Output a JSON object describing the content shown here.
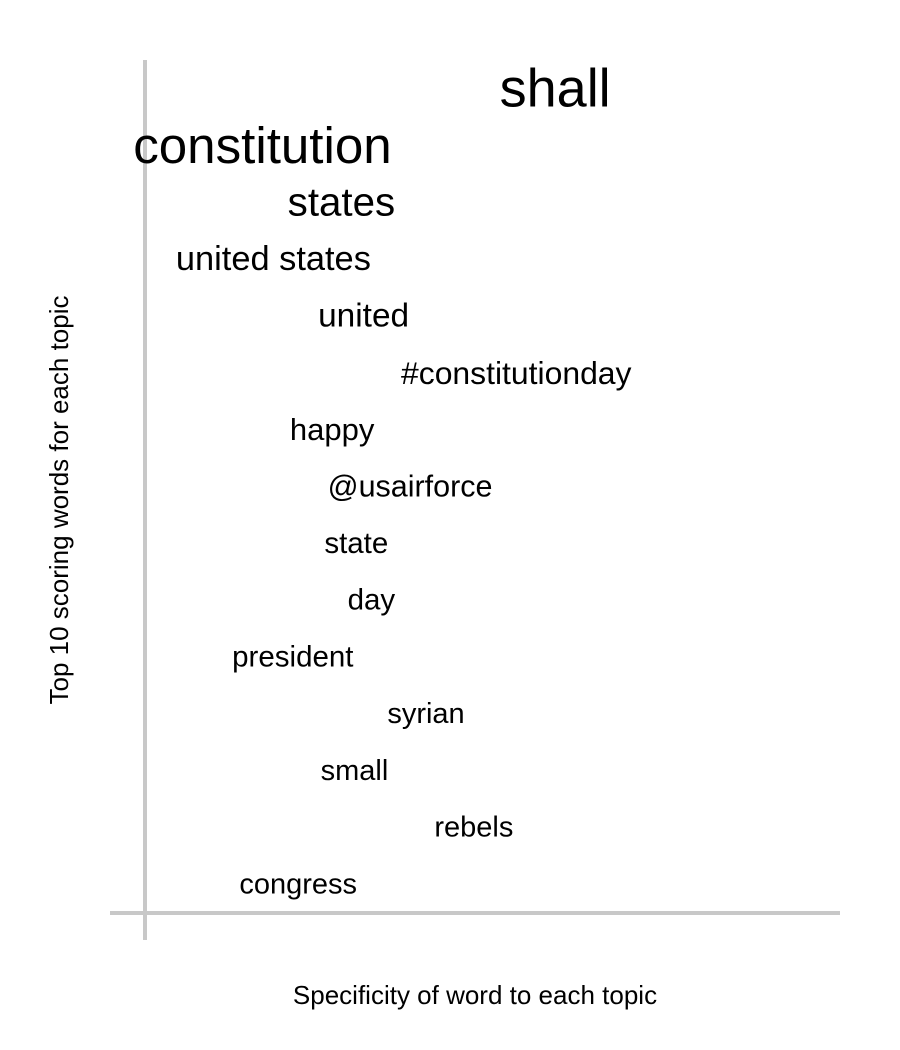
{
  "chart_data": {
    "type": "scatter",
    "title": "",
    "xlabel": "Specificity of word to each topic",
    "ylabel": "Top 10 scoring words for each topic",
    "xlim": [
      0,
      1
    ],
    "ylim": [
      0,
      15
    ],
    "grid": false,
    "axis_color": "#c8c8c8",
    "text_color": "#000000",
    "points": [
      {
        "word": "shall",
        "x": 0.67,
        "y": 14.5,
        "weight": 1.0
      },
      {
        "word": "constitution",
        "x": 0.355,
        "y": 13.5,
        "weight": 0.94
      },
      {
        "word": "states",
        "x": 0.36,
        "y": 12.5,
        "weight": 0.72
      },
      {
        "word": "united states",
        "x": 0.325,
        "y": 11.5,
        "weight": 0.6
      },
      {
        "word": "united",
        "x": 0.38,
        "y": 10.5,
        "weight": 0.58
      },
      {
        "word": "#constitutionday",
        "x": 0.7,
        "y": 9.5,
        "weight": 0.55
      },
      {
        "word": "happy",
        "x": 0.33,
        "y": 8.5,
        "weight": 0.53
      },
      {
        "word": "@usairforce",
        "x": 0.5,
        "y": 7.5,
        "weight": 0.52
      },
      {
        "word": "state",
        "x": 0.35,
        "y": 6.5,
        "weight": 0.5
      },
      {
        "word": "day",
        "x": 0.36,
        "y": 5.5,
        "weight": 0.5
      },
      {
        "word": "president",
        "x": 0.3,
        "y": 4.5,
        "weight": 0.5
      },
      {
        "word": "syrian",
        "x": 0.46,
        "y": 3.5,
        "weight": 0.49
      },
      {
        "word": "small",
        "x": 0.35,
        "y": 2.5,
        "weight": 0.49
      },
      {
        "word": "rebels",
        "x": 0.53,
        "y": 1.5,
        "weight": 0.49
      },
      {
        "word": "congress",
        "x": 0.305,
        "y": 0.5,
        "weight": 0.49
      }
    ]
  }
}
